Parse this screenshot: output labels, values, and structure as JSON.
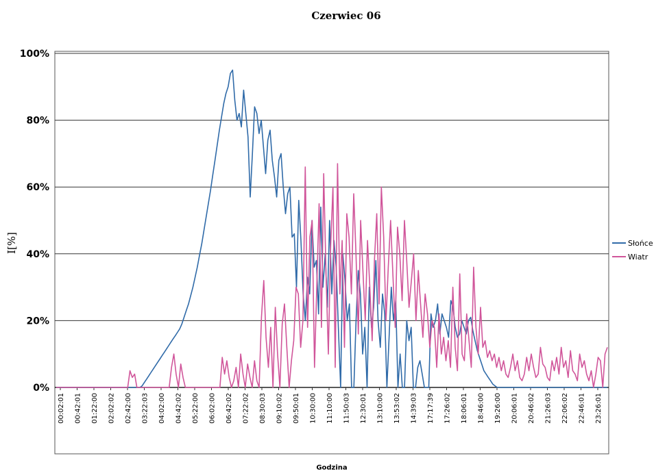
{
  "chart_data": {
    "type": "line",
    "title": "Czerwiec 06",
    "xlabel": "Godzina",
    "ylabel": "I[%]",
    "ylim": [
      0,
      100
    ],
    "yticks": [
      "0%",
      "20%",
      "40%",
      "60%",
      "80%",
      "100%"
    ],
    "grid": true,
    "legend_position": "right",
    "x_tick_labels": [
      "00:02:01",
      "00:42:01",
      "01:22:00",
      "02:02:02",
      "02:42:00",
      "03:22:03",
      "04:02:00",
      "04:42:02",
      "05:22:00",
      "06:02:00",
      "06:42:02",
      "07:22:02",
      "08:30:03",
      "09:10:02",
      "09:50:01",
      "10:30:00",
      "11:10:00",
      "11:50:03",
      "12:30:01",
      "13:10:00",
      "13:53:02",
      "14:39:03",
      "17:17:39",
      "17:26:02",
      "18:06:01",
      "18:46:00",
      "19:26:00",
      "20:06:01",
      "20:46:02",
      "21:26:03",
      "22:06:02",
      "22:46:01",
      "23:26:01"
    ],
    "series": [
      {
        "name": "Słońce",
        "color": "#2f6aa8",
        "values": [
          0,
          0,
          0,
          0,
          0,
          0,
          0,
          0,
          0,
          0,
          0,
          0,
          0,
          0,
          0,
          0,
          0,
          0,
          0,
          0,
          0,
          0,
          0,
          0,
          0,
          0,
          0,
          0,
          0,
          0,
          0,
          0,
          0,
          0,
          0,
          0,
          0,
          0,
          0,
          0.5,
          1.5,
          2.5,
          3.5,
          4.5,
          5.5,
          6.5,
          7.5,
          8.5,
          9.5,
          10.5,
          11.5,
          12.5,
          13.5,
          14.5,
          15.5,
          16.5,
          17.5,
          19,
          21,
          23,
          25,
          27.5,
          30,
          33,
          36,
          39.5,
          43,
          47,
          51,
          55,
          59,
          63.5,
          68,
          72.5,
          77,
          81,
          85,
          88,
          90,
          94,
          95,
          86,
          80,
          82,
          78,
          89,
          82,
          75,
          57,
          70,
          84,
          82,
          76,
          80,
          72,
          64,
          74,
          77,
          68,
          63,
          57,
          68,
          70,
          60,
          52,
          58,
          60,
          45,
          46,
          30,
          56,
          44,
          28,
          20,
          33,
          28,
          50,
          36,
          38,
          22,
          54,
          30,
          40,
          24,
          50,
          28,
          44,
          36,
          18,
          0,
          40,
          32,
          20,
          25,
          0,
          0,
          20,
          35,
          28,
          10,
          18,
          0,
          30,
          18,
          24,
          38,
          20,
          12,
          28,
          22,
          0,
          15,
          30,
          20,
          26,
          0,
          10,
          0,
          0,
          20,
          14,
          18,
          0,
          0,
          6,
          8,
          4,
          0,
          0,
          0,
          22,
          18,
          20,
          25,
          16,
          22,
          20,
          18,
          15,
          26,
          24,
          18,
          15,
          16,
          20,
          18,
          16,
          20,
          21,
          17,
          14,
          11,
          9,
          7,
          5,
          4,
          3,
          2,
          1,
          0.5,
          0,
          0,
          0,
          0,
          0,
          0,
          0,
          0,
          0,
          0,
          0,
          0,
          0,
          0,
          0,
          0,
          0,
          0,
          0,
          0,
          0,
          0,
          0,
          0,
          0,
          0,
          0,
          0,
          0,
          0,
          0,
          0,
          0,
          0,
          0,
          0,
          0,
          0,
          0,
          0,
          0,
          0,
          0,
          0,
          0,
          0,
          0,
          0,
          0,
          0,
          0
        ]
      },
      {
        "name": "Wiatr",
        "color": "#d0559a",
        "values": [
          0,
          0,
          0,
          0,
          0,
          0,
          0,
          0,
          0,
          0,
          0,
          0,
          0,
          0,
          0,
          0,
          0,
          0,
          0,
          0,
          0,
          0,
          0,
          0,
          0,
          0,
          0,
          0,
          0,
          0,
          0,
          0,
          5,
          3,
          4,
          0,
          0,
          0,
          0,
          0,
          0,
          0,
          0,
          0,
          0,
          0,
          0,
          0,
          0,
          0,
          6,
          10,
          4,
          0,
          7,
          3,
          0,
          0,
          0,
          0,
          0,
          0,
          0,
          0,
          0,
          0,
          0,
          0,
          0,
          0,
          0,
          0,
          9,
          4,
          8,
          3,
          0,
          2,
          6,
          0,
          10,
          4,
          0,
          7,
          3,
          0,
          8,
          2,
          0,
          21,
          32,
          15,
          6,
          18,
          0,
          24,
          10,
          0,
          19,
          25,
          12,
          0,
          8,
          14,
          30,
          28,
          12,
          20,
          66,
          18,
          45,
          50,
          6,
          30,
          55,
          18,
          64,
          34,
          10,
          42,
          60,
          6,
          67,
          28,
          44,
          12,
          52,
          45,
          28,
          58,
          40,
          16,
          50,
          35,
          20,
          44,
          30,
          14,
          38,
          52,
          25,
          60,
          45,
          20,
          36,
          50,
          34,
          18,
          48,
          40,
          26,
          50,
          38,
          24,
          32,
          40,
          20,
          35,
          25,
          15,
          28,
          22,
          12,
          20,
          18,
          6,
          22,
          10,
          15,
          8,
          14,
          6,
          30,
          12,
          5,
          34,
          10,
          8,
          22,
          14,
          6,
          36,
          18,
          10,
          24,
          12,
          14,
          9,
          11,
          8,
          10,
          6,
          9,
          5,
          8,
          4,
          3,
          6,
          10,
          5,
          8,
          3,
          2,
          4,
          9,
          5,
          10,
          6,
          3,
          4,
          12,
          7,
          6,
          3,
          2,
          8,
          5,
          9,
          4,
          12,
          6,
          8,
          3,
          11,
          5,
          4,
          2,
          10,
          6,
          8,
          4,
          2,
          5,
          0,
          4,
          9,
          8,
          0,
          10,
          12
        ]
      }
    ]
  }
}
